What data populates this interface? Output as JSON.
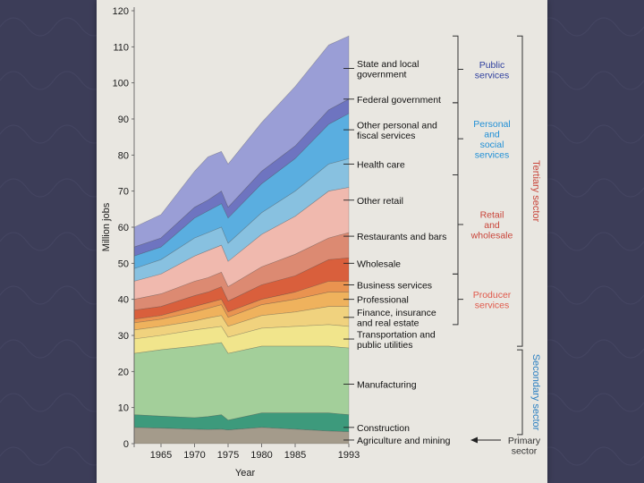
{
  "slide": {
    "background_color": "#3c3d58"
  },
  "chart_data": {
    "type": "area",
    "title": "",
    "xlabel": "Year",
    "ylabel": "Million jobs",
    "x": [
      1961,
      1965,
      1970,
      1972,
      1974,
      1975,
      1980,
      1985,
      1990,
      1993
    ],
    "xlim": [
      1961,
      1993
    ],
    "ylim": [
      0,
      120
    ],
    "x_ticks": [
      "1965",
      "1970",
      "1975",
      "1980",
      "1985",
      "1993"
    ],
    "x_tick_values": [
      1965,
      1970,
      1975,
      1980,
      1985,
      1993
    ],
    "y_ticks": [
      0,
      10,
      20,
      30,
      40,
      50,
      60,
      70,
      80,
      90,
      100,
      110,
      120
    ],
    "cumulative_tops": [
      {
        "name": "Agriculture and mining",
        "values": [
          4.5,
          4.3,
          4.0,
          3.9,
          4.0,
          3.8,
          4.5,
          4.0,
          3.5,
          3.3
        ],
        "color": "#a49b8b"
      },
      {
        "name": "Construction",
        "values": [
          8.0,
          7.6,
          7.2,
          7.5,
          8.0,
          6.5,
          8.5,
          8.5,
          8.5,
          8.0
        ],
        "color": "#3d9a7c"
      },
      {
        "name": "Manufacturing",
        "values": [
          25.0,
          26.0,
          27.0,
          27.5,
          28.0,
          25.0,
          27.0,
          27.0,
          27.0,
          26.5
        ],
        "color": "#a3cf9a"
      },
      {
        "name": "Transportation and public utilities",
        "values": [
          29.0,
          30.0,
          31.5,
          32.0,
          32.5,
          29.5,
          32.0,
          32.5,
          33.0,
          32.5
        ],
        "color": "#f1e58c"
      },
      {
        "name": "Finance, insurance and real estate",
        "values": [
          31.5,
          32.5,
          34.0,
          34.8,
          35.5,
          32.5,
          35.5,
          36.5,
          38.0,
          38.0
        ],
        "color": "#f0d27e"
      },
      {
        "name": "Professional",
        "values": [
          33.5,
          34.5,
          36.5,
          37.5,
          38.5,
          35.0,
          38.5,
          40.0,
          42.0,
          42.0
        ],
        "color": "#efb25d"
      },
      {
        "name": "Business services",
        "values": [
          34.5,
          35.5,
          38.0,
          39.0,
          40.0,
          36.5,
          40.0,
          42.0,
          45.0,
          45.0
        ],
        "color": "#e99350"
      },
      {
        "name": "Wholesale",
        "values": [
          37.0,
          38.0,
          41.0,
          42.0,
          43.5,
          39.5,
          44.0,
          46.5,
          51.0,
          51.5
        ],
        "color": "#d95f3c"
      },
      {
        "name": "Restaurants and bars",
        "values": [
          40.0,
          41.5,
          45.0,
          46.0,
          47.5,
          43.5,
          49.0,
          52.5,
          57.0,
          58.5
        ],
        "color": "#dc8a72"
      },
      {
        "name": "Other retail",
        "values": [
          45.0,
          47.0,
          52.0,
          53.5,
          55.0,
          50.5,
          58.0,
          63.0,
          70.0,
          71.0
        ],
        "color": "#f0b9ae"
      },
      {
        "name": "Health care",
        "values": [
          48.5,
          51.0,
          57.0,
          58.5,
          60.0,
          55.5,
          64.0,
          70.0,
          77.5,
          79.0
        ],
        "color": "#88c1e0"
      },
      {
        "name": "Other personal and fiscal services",
        "values": [
          52.0,
          54.5,
          62.5,
          64.5,
          66.5,
          62.5,
          72.0,
          79.0,
          88.5,
          91.5
        ],
        "color": "#5aaee0"
      },
      {
        "name": "Federal government",
        "values": [
          54.5,
          57.0,
          65.5,
          67.5,
          70.0,
          65.5,
          75.5,
          82.5,
          92.5,
          95.5
        ],
        "color": "#6e74c0"
      },
      {
        "name": "State and local government",
        "values": [
          60.0,
          63.5,
          75.5,
          79.5,
          81.0,
          77.5,
          89.0,
          99.0,
          110.5,
          113.0
        ],
        "color": "#9a9ed6"
      }
    ],
    "series_labels": [
      {
        "name": "State and local government",
        "lines": [
          "State and local",
          "government"
        ],
        "at": 104
      },
      {
        "name": "Federal government",
        "lines": [
          "Federal government"
        ],
        "at": 95.5
      },
      {
        "name": "Other personal and fiscal services",
        "lines": [
          "Other personal and",
          "fiscal services"
        ],
        "at": 87
      },
      {
        "name": "Health care",
        "lines": [
          "Health care"
        ],
        "at": 77.5
      },
      {
        "name": "Other retail",
        "lines": [
          "Other retail"
        ],
        "at": 67.5
      },
      {
        "name": "Restaurants and bars",
        "lines": [
          "Restaurants and bars"
        ],
        "at": 57.5
      },
      {
        "name": "Wholesale",
        "lines": [
          "Wholesale"
        ],
        "at": 50
      },
      {
        "name": "Business services",
        "lines": [
          "Business services"
        ],
        "at": 44
      },
      {
        "name": "Professional",
        "lines": [
          "Professional"
        ],
        "at": 40
      },
      {
        "name": "Finance, insurance and real estate",
        "lines": [
          "Finance, insurance",
          "and real estate"
        ],
        "at": 35
      },
      {
        "name": "Transportation and public utilities",
        "lines": [
          "Transportation and",
          "public utilities"
        ],
        "at": 29
      },
      {
        "name": "Manufacturing",
        "lines": [
          "Manufacturing"
        ],
        "at": 16.5
      },
      {
        "name": "Construction",
        "lines": [
          "Construction"
        ],
        "at": 4.5
      },
      {
        "name": "Agriculture and mining",
        "lines": [
          "Agriculture and mining"
        ],
        "at": 1
      }
    ],
    "group_brackets": [
      {
        "name": "Public services",
        "lines": [
          "Public",
          "services"
        ],
        "from": 113,
        "to": 94.5,
        "color": "#2e3f9e"
      },
      {
        "name": "Personal and social services",
        "lines": [
          "Personal",
          "and",
          "social",
          "services"
        ],
        "from": 94.5,
        "to": 74.5,
        "color": "#1f8fd6"
      },
      {
        "name": "Retail and wholesale",
        "lines": [
          "Retail",
          "and",
          "wholesale"
        ],
        "from": 74.5,
        "to": 47,
        "color": "#c9453a"
      },
      {
        "name": "Producer services",
        "lines": [
          "Producer",
          "services"
        ],
        "from": 47,
        "to": 33,
        "color": "#e0584a"
      }
    ],
    "sector_brackets": [
      {
        "name": "Tertiary sector",
        "label": "Tertiary sector",
        "from": 113,
        "to": 27,
        "color": "#c9453a"
      },
      {
        "name": "Secondary sector",
        "label": "Secondary sector",
        "from": 26,
        "to": 2.5,
        "color": "#2a7fc2"
      }
    ],
    "primary_label": {
      "lines": [
        "Primary",
        "sector"
      ],
      "at": 1,
      "color": "#333333"
    }
  }
}
